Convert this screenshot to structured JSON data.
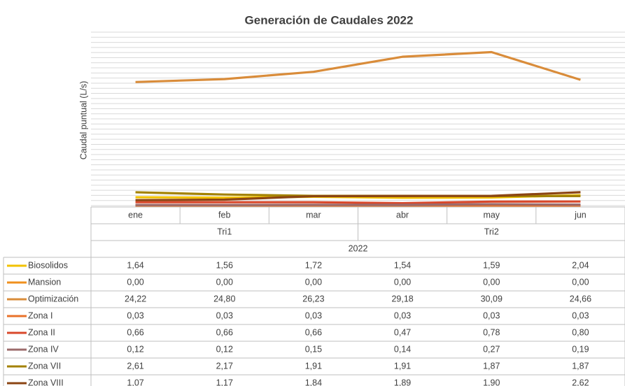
{
  "chart_data": {
    "type": "line",
    "title": "Generación de Caudales 2022",
    "y_label": "Caudal puntual (L/s)",
    "categories": [
      "ene",
      "feb",
      "mar",
      "abr",
      "may",
      "jun"
    ],
    "groups": [
      {
        "label": "Tri1",
        "span": 3
      },
      {
        "label": "Tri2",
        "span": 3
      }
    ],
    "year": "2022",
    "ylim": [
      0,
      34
    ],
    "yticks": [
      0,
      1,
      2,
      3,
      4,
      5,
      6,
      7,
      8,
      9,
      10,
      11,
      12,
      13,
      14,
      15,
      16,
      17,
      18,
      19,
      20,
      21,
      22,
      23,
      24,
      25,
      26,
      27,
      28,
      29,
      30,
      31,
      32,
      33,
      34
    ],
    "grid": true,
    "series": [
      {
        "name": "Biosolidos",
        "color": "#f2c200",
        "values": [
          1.64,
          1.56,
          1.72,
          1.54,
          1.59,
          2.04
        ],
        "value_labels": [
          "1,64",
          "1,56",
          "1,72",
          "1,54",
          "1,59",
          "2,04"
        ]
      },
      {
        "name": "Mansion",
        "color": "#f0901e",
        "values": [
          0.0,
          0.0,
          0.0,
          0.0,
          0.0,
          0.0
        ],
        "value_labels": [
          "0,00",
          "0,00",
          "0,00",
          "0,00",
          "0,00",
          "0,00"
        ]
      },
      {
        "name": "Optimización",
        "color": "#d98c3a",
        "values": [
          24.22,
          24.8,
          26.23,
          29.18,
          30.09,
          24.66
        ],
        "value_labels": [
          "24,22",
          "24,80",
          "26,23",
          "29,18",
          "30,09",
          "24,66"
        ]
      },
      {
        "name": "Zona I",
        "color": "#e8722a",
        "values": [
          0.03,
          0.03,
          0.03,
          0.03,
          0.03,
          0.03
        ],
        "value_labels": [
          "0,03",
          "0,03",
          "0,03",
          "0,03",
          "0,03",
          "0,03"
        ]
      },
      {
        "name": "Zona II",
        "color": "#d9482b",
        "values": [
          0.66,
          0.66,
          0.66,
          0.47,
          0.78,
          0.8
        ],
        "value_labels": [
          "0,66",
          "0,66",
          "0,66",
          "0,47",
          "0,78",
          "0,80"
        ]
      },
      {
        "name": "Zona IV",
        "color": "#9c6b6b",
        "values": [
          0.12,
          0.12,
          0.15,
          0.14,
          0.27,
          0.19
        ],
        "value_labels": [
          "0,12",
          "0,12",
          "0,15",
          "0,14",
          "0,27",
          "0,19"
        ]
      },
      {
        "name": "Zona VII",
        "color": "#a38200",
        "values": [
          2.61,
          2.17,
          1.91,
          1.91,
          1.87,
          1.87
        ],
        "value_labels": [
          "2,61",
          "2,17",
          "1,91",
          "1,91",
          "1,87",
          "1,87"
        ]
      },
      {
        "name": "Zona VIII",
        "color": "#8b4513",
        "values": [
          1.07,
          1.17,
          1.84,
          1.89,
          1.9,
          2.62
        ],
        "value_labels": [
          "1,07",
          "1,17",
          "1,84",
          "1,89",
          "1,90",
          "2,62"
        ]
      }
    ]
  }
}
